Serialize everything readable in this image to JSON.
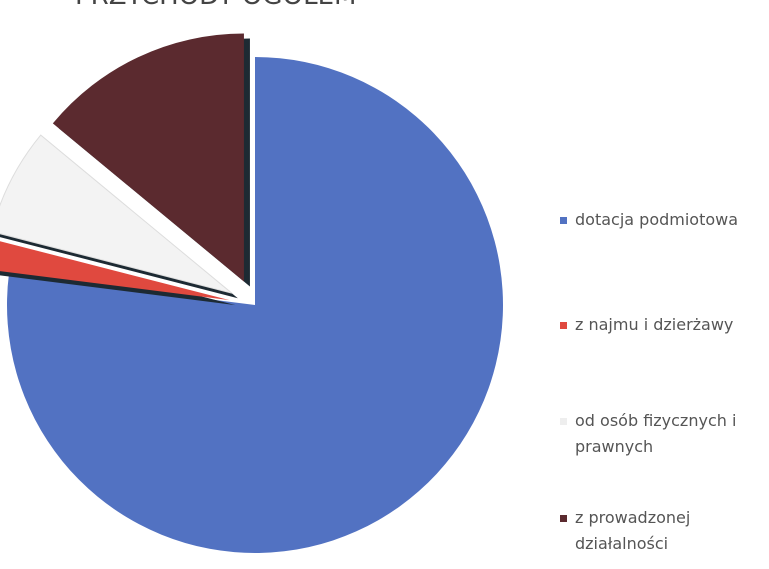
{
  "chart_data": {
    "type": "pie",
    "title": "PRZYCHODY OGÓŁEM",
    "categories": [
      "dotacja podmiotowa",
      "z najmu i dzierżawy",
      "od osób fizycznych i prawnych",
      "z prowadzonej działalności"
    ],
    "values": [
      77,
      2,
      7,
      14
    ],
    "colors": [
      "#5272c2",
      "#e0493f",
      "#f3f3f3",
      "#5b2a2f"
    ],
    "legend": "right"
  }
}
